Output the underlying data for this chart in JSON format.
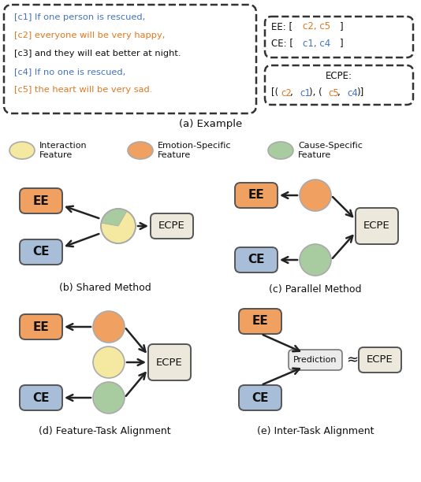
{
  "title_a": "(a) Example",
  "title_b": "(b) Shared Method",
  "title_c": "(c) Parallel Method",
  "title_d": "(d) Feature-Task Alignment",
  "title_e": "(e) Inter-Task Alignment",
  "text_c1": "[c1] If one person is rescued,",
  "text_c2": "[c2] everyone will be very happy,",
  "text_c3": "[c3] and they will eat better at night.",
  "text_c4": "[c4] If no one is rescued,",
  "text_c5": "[c5] the heart will be very sad.",
  "color_blue": "#4472C4",
  "color_orange": "#E07820",
  "color_black": "#111111",
  "ee_box_color": "#F0A060",
  "ce_box_color": "#A8BDD8",
  "ecpe_box_color": "#EDE8DC",
  "pred_box_color": "#EBEBEB",
  "circle_interaction": "#F5E8A0",
  "circle_emotion": "#F0A060",
  "circle_cause": "#A8CCA0",
  "bg_color": "#FFFFFF"
}
